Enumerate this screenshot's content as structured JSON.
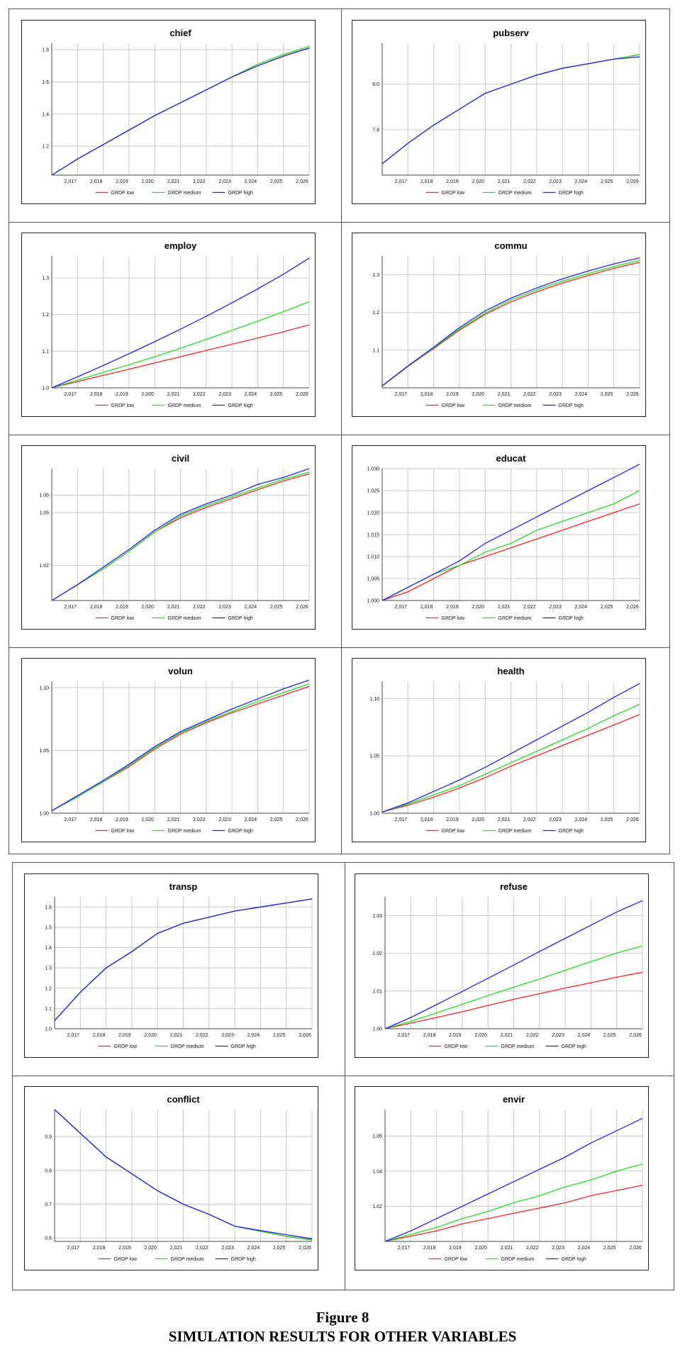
{
  "figure": {
    "label": "Figure 8",
    "caption": "SIMULATION RESULTS FOR OTHER VARIABLES"
  },
  "colors": {
    "low": "#ff2222",
    "medium": "#22dd22",
    "high": "#2222ee",
    "grid": "#c8c8c8"
  },
  "legend": [
    "GRDP low",
    "GRDP medium",
    "GRDP high"
  ],
  "x_ticks": [
    "2,017",
    "2,018",
    "2,019",
    "2,020",
    "2,021",
    "2,022",
    "2,023",
    "2,024",
    "2,025",
    "2,026"
  ],
  "chart_data": [
    {
      "type": "line",
      "title": "chief",
      "x": [
        2016,
        2017,
        2018,
        2019,
        2020,
        2021,
        2022,
        2023,
        2024,
        2025,
        2026
      ],
      "ylim": [
        1.02,
        1.84
      ],
      "yticks": [
        "1.2",
        "1.4",
        "1.6",
        "1.8"
      ],
      "ytick_values": [
        1.2,
        1.4,
        1.6,
        1.8
      ],
      "series": [
        {
          "name": "GRDP low",
          "values": [
            1.02,
            1.12,
            1.21,
            1.3,
            1.39,
            1.47,
            1.55,
            1.63,
            1.7,
            1.76,
            1.81
          ]
        },
        {
          "name": "GRDP medium",
          "values": [
            1.02,
            1.12,
            1.21,
            1.3,
            1.39,
            1.47,
            1.55,
            1.63,
            1.71,
            1.77,
            1.82
          ]
        },
        {
          "name": "GRDP high",
          "values": [
            1.02,
            1.12,
            1.21,
            1.3,
            1.39,
            1.47,
            1.55,
            1.63,
            1.7,
            1.76,
            1.81
          ]
        }
      ]
    },
    {
      "type": "line",
      "title": "pubserv",
      "x": [
        2016,
        2017,
        2018,
        2019,
        2020,
        2021,
        2022,
        2023,
        2024,
        2025,
        2026
      ],
      "ylim": [
        7.6,
        8.18
      ],
      "yticks": [
        "7.8",
        "8.0"
      ],
      "ytick_values": [
        7.8,
        8.0
      ],
      "series": [
        {
          "name": "GRDP low",
          "values": [
            7.65,
            7.74,
            7.82,
            7.89,
            7.96,
            8.0,
            8.04,
            8.07,
            8.09,
            8.11,
            8.13
          ]
        },
        {
          "name": "GRDP medium",
          "values": [
            7.65,
            7.74,
            7.82,
            7.89,
            7.96,
            8.0,
            8.04,
            8.07,
            8.09,
            8.11,
            8.13
          ]
        },
        {
          "name": "GRDP high",
          "values": [
            7.65,
            7.74,
            7.82,
            7.89,
            7.96,
            8.0,
            8.04,
            8.07,
            8.09,
            8.11,
            8.12
          ]
        }
      ]
    },
    {
      "type": "line",
      "title": "employ",
      "x": [
        2016,
        2017,
        2018,
        2019,
        2020,
        2021,
        2022,
        2023,
        2024,
        2025,
        2026
      ],
      "ylim": [
        1.0,
        1.36
      ],
      "yticks": [
        "1.0",
        "1.1",
        "1.2",
        "1.3"
      ],
      "ytick_values": [
        1.0,
        1.1,
        1.2,
        1.3
      ],
      "series": [
        {
          "name": "GRDP low",
          "values": [
            1.0,
            1.017,
            1.034,
            1.051,
            1.068,
            1.085,
            1.102,
            1.119,
            1.136,
            1.153,
            1.172
          ]
        },
        {
          "name": "GRDP medium",
          "values": [
            1.0,
            1.021,
            1.042,
            1.063,
            1.085,
            1.108,
            1.132,
            1.157,
            1.182,
            1.208,
            1.235
          ]
        },
        {
          "name": "GRDP high",
          "values": [
            1.0,
            1.03,
            1.061,
            1.093,
            1.126,
            1.16,
            1.195,
            1.232,
            1.27,
            1.31,
            1.354
          ]
        }
      ]
    },
    {
      "type": "line",
      "title": "commu",
      "x": [
        2016,
        2017,
        2018,
        2019,
        2020,
        2021,
        2022,
        2023,
        2024,
        2025,
        2026
      ],
      "ylim": [
        1.0,
        1.35
      ],
      "yticks": [
        "1.1",
        "1.2",
        "1.3"
      ],
      "ytick_values": [
        1.1,
        1.2,
        1.3
      ],
      "series": [
        {
          "name": "GRDP low",
          "values": [
            1.005,
            1.057,
            1.104,
            1.153,
            1.195,
            1.228,
            1.255,
            1.278,
            1.298,
            1.317,
            1.333
          ]
        },
        {
          "name": "GRDP medium",
          "values": [
            1.005,
            1.058,
            1.106,
            1.156,
            1.198,
            1.233,
            1.26,
            1.283,
            1.303,
            1.322,
            1.338
          ]
        },
        {
          "name": "GRDP high",
          "values": [
            1.005,
            1.058,
            1.108,
            1.16,
            1.204,
            1.238,
            1.265,
            1.289,
            1.31,
            1.329,
            1.345
          ]
        }
      ]
    },
    {
      "type": "line",
      "title": "civil",
      "x": [
        2016,
        2017,
        2018,
        2019,
        2020,
        2021,
        2022,
        2023,
        2024,
        2025,
        2026
      ],
      "ylim": [
        1.0,
        1.075
      ],
      "yticks": [
        "1.02",
        "1.05",
        "1.06"
      ],
      "ytick_values": [
        1.02,
        1.05,
        1.06
      ],
      "series": [
        {
          "name": "GRDP low",
          "values": [
            1.0,
            1.009,
            1.018,
            1.028,
            1.039,
            1.047,
            1.053,
            1.058,
            1.063,
            1.068,
            1.072
          ]
        },
        {
          "name": "GRDP medium",
          "values": [
            1.0,
            1.009,
            1.018,
            1.028,
            1.039,
            1.048,
            1.054,
            1.059,
            1.064,
            1.069,
            1.073
          ]
        },
        {
          "name": "GRDP high",
          "values": [
            1.0,
            1.009,
            1.019,
            1.029,
            1.04,
            1.049,
            1.055,
            1.06,
            1.066,
            1.07,
            1.075
          ]
        }
      ]
    },
    {
      "type": "line",
      "title": "educat",
      "x": [
        2016,
        2017,
        2018,
        2019,
        2020,
        2021,
        2022,
        2023,
        2024,
        2025,
        2026
      ],
      "ylim": [
        1.0,
        1.03
      ],
      "yticks": [
        "1.000",
        "1.005",
        "1.010",
        "1.015",
        "1.020",
        "1.025",
        "1.030"
      ],
      "ytick_values": [
        1.0,
        1.005,
        1.01,
        1.015,
        1.02,
        1.025,
        1.03
      ],
      "series": [
        {
          "name": "GRDP low",
          "values": [
            1.0,
            1.002,
            1.005,
            1.008,
            1.01,
            1.012,
            1.014,
            1.016,
            1.018,
            1.02,
            1.022
          ]
        },
        {
          "name": "GRDP medium",
          "values": [
            1.0,
            1.003,
            1.006,
            1.008,
            1.011,
            1.013,
            1.016,
            1.018,
            1.02,
            1.022,
            1.025
          ]
        },
        {
          "name": "GRDP high",
          "values": [
            1.0,
            1.003,
            1.006,
            1.009,
            1.013,
            1.016,
            1.019,
            1.022,
            1.025,
            1.028,
            1.031
          ]
        }
      ]
    },
    {
      "type": "line",
      "title": "volun",
      "x": [
        2016,
        2017,
        2018,
        2019,
        2020,
        2021,
        2022,
        2023,
        2024,
        2025,
        2026
      ],
      "ylim": [
        1.0,
        1.105
      ],
      "yticks": [
        "1.00",
        "1.05",
        "1.10"
      ],
      "ytick_values": [
        1.0,
        1.05,
        1.1
      ],
      "series": [
        {
          "name": "GRDP low",
          "values": [
            1.002,
            1.013,
            1.025,
            1.037,
            1.051,
            1.063,
            1.072,
            1.08,
            1.087,
            1.094,
            1.101
          ]
        },
        {
          "name": "GRDP medium",
          "values": [
            1.002,
            1.013,
            1.025,
            1.038,
            1.052,
            1.064,
            1.073,
            1.081,
            1.089,
            1.096,
            1.103
          ]
        },
        {
          "name": "GRDP high",
          "values": [
            1.002,
            1.014,
            1.026,
            1.039,
            1.053,
            1.065,
            1.074,
            1.083,
            1.091,
            1.099,
            1.106
          ]
        }
      ]
    },
    {
      "type": "line",
      "title": "health",
      "x": [
        2016,
        2017,
        2018,
        2019,
        2020,
        2021,
        2022,
        2023,
        2024,
        2025,
        2026
      ],
      "ylim": [
        1.0,
        1.115
      ],
      "yticks": [
        "1.00",
        "1.05",
        "1.10"
      ],
      "ytick_values": [
        1.0,
        1.05,
        1.1
      ],
      "series": [
        {
          "name": "GRDP low",
          "values": [
            1.001,
            1.007,
            1.014,
            1.022,
            1.031,
            1.041,
            1.05,
            1.059,
            1.068,
            1.077,
            1.086
          ]
        },
        {
          "name": "GRDP medium",
          "values": [
            1.001,
            1.008,
            1.016,
            1.024,
            1.034,
            1.044,
            1.054,
            1.064,
            1.074,
            1.085,
            1.095
          ]
        },
        {
          "name": "GRDP high",
          "values": [
            1.001,
            1.009,
            1.019,
            1.029,
            1.04,
            1.052,
            1.064,
            1.076,
            1.088,
            1.101,
            1.113
          ]
        }
      ]
    },
    {
      "type": "line",
      "title": "transp",
      "x": [
        2016,
        2017,
        2018,
        2019,
        2020,
        2021,
        2022,
        2023,
        2024,
        2025,
        2026
      ],
      "ylim": [
        1.0,
        1.65
      ],
      "yticks": [
        "1.0",
        "1.1",
        "1.2",
        "1.3",
        "1.4",
        "1.5",
        "1.6"
      ],
      "ytick_values": [
        1.0,
        1.1,
        1.2,
        1.3,
        1.4,
        1.5,
        1.6
      ],
      "series": [
        {
          "name": "GRDP low",
          "values": [
            1.04,
            1.18,
            1.3,
            1.38,
            1.47,
            1.52,
            1.55,
            1.58,
            1.6,
            1.62,
            1.64
          ]
        },
        {
          "name": "GRDP medium",
          "values": [
            1.04,
            1.18,
            1.3,
            1.38,
            1.47,
            1.52,
            1.55,
            1.58,
            1.6,
            1.62,
            1.64
          ]
        },
        {
          "name": "GRDP high",
          "values": [
            1.04,
            1.18,
            1.3,
            1.38,
            1.47,
            1.52,
            1.55,
            1.58,
            1.6,
            1.62,
            1.64
          ]
        }
      ]
    },
    {
      "type": "line",
      "title": "refuse",
      "x": [
        2016,
        2017,
        2018,
        2019,
        2020,
        2021,
        2022,
        2023,
        2024,
        2025,
        2026
      ],
      "ylim": [
        1.0,
        1.035
      ],
      "yticks": [
        "1.00",
        "1.01",
        "1.02",
        "1.03"
      ],
      "ytick_values": [
        1.0,
        1.01,
        1.02,
        1.03
      ],
      "series": [
        {
          "name": "GRDP low",
          "values": [
            1.0,
            1.0015,
            1.003,
            1.0045,
            1.0062,
            1.0078,
            1.0093,
            1.0108,
            1.0122,
            1.0137,
            1.015
          ]
        },
        {
          "name": "GRDP medium",
          "values": [
            1.0,
            1.002,
            1.0042,
            1.0065,
            1.0088,
            1.011,
            1.0132,
            1.0155,
            1.0178,
            1.0201,
            1.022
          ]
        },
        {
          "name": "GRDP high",
          "values": [
            1.0,
            1.003,
            1.0064,
            1.0099,
            1.0134,
            1.0169,
            1.0205,
            1.024,
            1.0275,
            1.031,
            1.034
          ]
        }
      ]
    },
    {
      "type": "line",
      "title": "conflict",
      "x": [
        2016,
        2017,
        2018,
        2019,
        2020,
        2021,
        2022,
        2023,
        2024,
        2025,
        2026
      ],
      "ylim": [
        0.59,
        0.98
      ],
      "yticks": [
        "0.6",
        "0.7",
        "0.8",
        "0.9"
      ],
      "ytick_values": [
        0.6,
        0.7,
        0.8,
        0.9
      ],
      "series": [
        {
          "name": "GRDP low",
          "values": [
            0.98,
            0.91,
            0.84,
            0.79,
            0.74,
            0.7,
            0.67,
            0.635,
            0.62,
            0.605,
            0.595
          ]
        },
        {
          "name": "GRDP medium",
          "values": [
            0.98,
            0.91,
            0.84,
            0.79,
            0.74,
            0.7,
            0.67,
            0.635,
            0.62,
            0.605,
            0.594
          ]
        },
        {
          "name": "GRDP high",
          "values": [
            0.98,
            0.91,
            0.84,
            0.79,
            0.74,
            0.7,
            0.67,
            0.635,
            0.622,
            0.61,
            0.598
          ]
        }
      ]
    },
    {
      "type": "line",
      "title": "envir",
      "x": [
        2016,
        2017,
        2018,
        2019,
        2020,
        2021,
        2022,
        2023,
        2024,
        2025,
        2026
      ],
      "ylim": [
        1.0,
        1.075
      ],
      "yticks": [
        "1.02",
        "1.04",
        "1.06"
      ],
      "ytick_values": [
        1.02,
        1.04,
        1.06
      ],
      "series": [
        {
          "name": "GRDP low",
          "values": [
            1.0,
            1.003,
            1.006,
            1.01,
            1.013,
            1.016,
            1.019,
            1.022,
            1.026,
            1.029,
            1.032
          ]
        },
        {
          "name": "GRDP medium",
          "values": [
            1.0,
            1.004,
            1.008,
            1.013,
            1.017,
            1.022,
            1.026,
            1.031,
            1.035,
            1.04,
            1.044
          ]
        },
        {
          "name": "GRDP high",
          "values": [
            1.0,
            1.006,
            1.013,
            1.02,
            1.027,
            1.034,
            1.041,
            1.048,
            1.056,
            1.063,
            1.07
          ]
        }
      ]
    }
  ]
}
